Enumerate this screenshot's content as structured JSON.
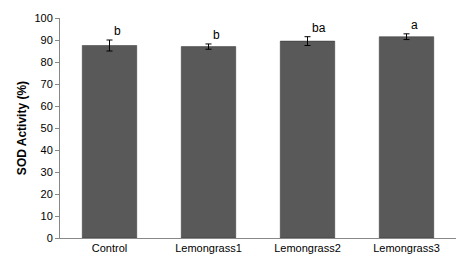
{
  "chart_data": {
    "type": "bar",
    "ylabel": "SOD Activity (%)",
    "categories": [
      "Control",
      "Lemongrass1",
      "Lemongrass2",
      "Lemongrass3"
    ],
    "values": [
      87.5,
      87,
      89.5,
      91.5
    ],
    "errors": [
      2.5,
      1.2,
      2,
      1.3
    ],
    "annotations": [
      "b",
      "b",
      "ba",
      "a"
    ],
    "color": "#595959",
    "ylim": [
      0,
      100
    ],
    "yticks": [
      0,
      10,
      20,
      30,
      40,
      50,
      60,
      70,
      80,
      90,
      100
    ],
    "grid": false
  }
}
